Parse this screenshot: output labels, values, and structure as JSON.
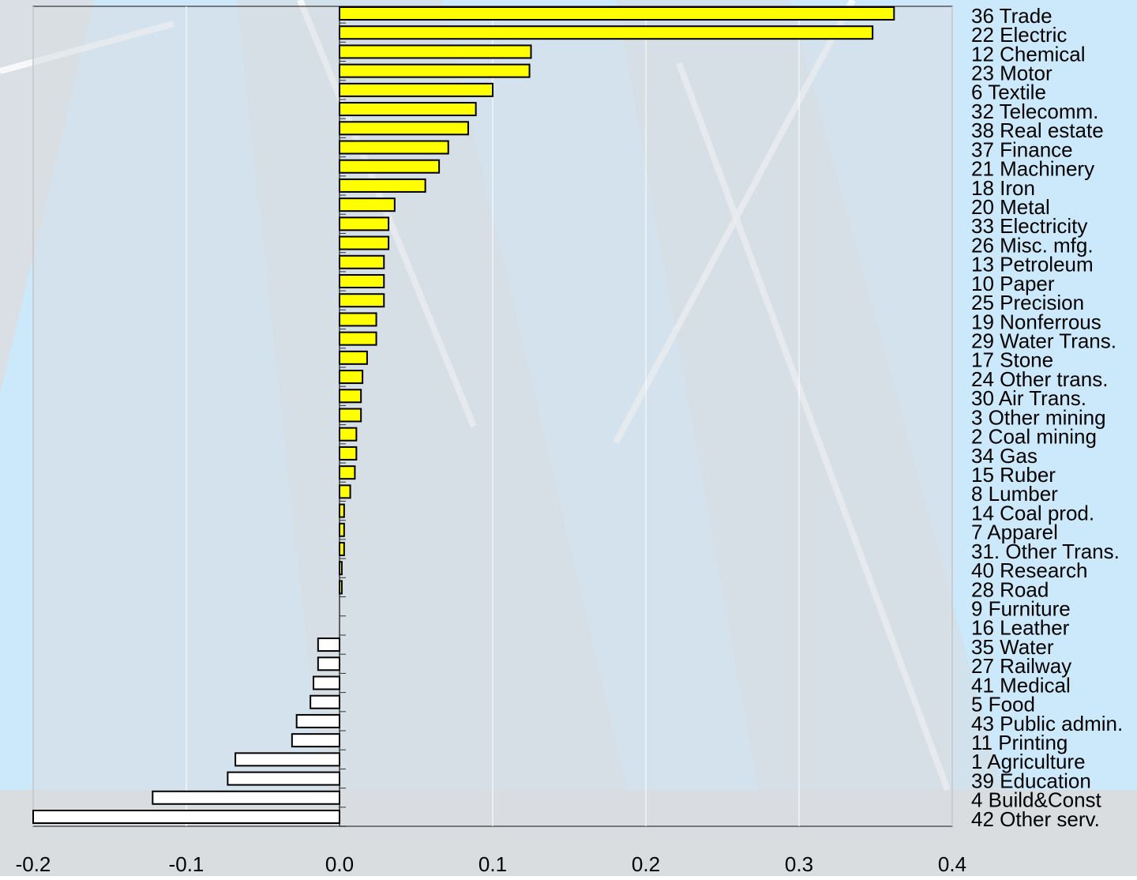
{
  "chart_data": {
    "type": "hbar",
    "categories": [
      "36 Trade",
      "22 Electric",
      "12 Chemical",
      "23 Motor",
      "6 Textile",
      "32 Telecomm.",
      "38 Real estate",
      "37 Finance",
      "21 Machinery",
      "18 Iron",
      "20 Metal",
      "33 Electricity",
      "26 Misc. mfg.",
      "13 Petroleum",
      "10 Paper",
      "25 Precision",
      "19 Nonferrous",
      "29 Water Trans.",
      "17 Stone",
      "24 Other trans.",
      "30 Air Trans.",
      "3 Other mining",
      "2 Coal mining",
      "34 Gas",
      "15 Ruber",
      "8 Lumber",
      "14 Coal prod.",
      "7 Apparel",
      "31. Other Trans.",
      "40 Research",
      "28 Road",
      "9 Furniture",
      "16 Leather",
      "35 Water",
      "27 Railway",
      "41 Medical",
      "5 Food",
      "43 Public admin.",
      "11 Printing",
      "1 Agriculture",
      "39 Education",
      "4 Build&Const",
      "42 Other serv."
    ],
    "values": [
      0.362,
      0.348,
      0.125,
      0.124,
      0.1,
      0.089,
      0.084,
      0.071,
      0.065,
      0.056,
      0.036,
      0.032,
      0.032,
      0.029,
      0.029,
      0.029,
      0.024,
      0.024,
      0.018,
      0.015,
      0.014,
      0.014,
      0.011,
      0.011,
      0.01,
      0.007,
      0.003,
      0.003,
      0.003,
      0.0015,
      0.0015,
      0,
      0,
      -0.014,
      -0.014,
      -0.017,
      -0.019,
      -0.028,
      -0.031,
      -0.068,
      -0.073,
      -0.122,
      -0.2
    ],
    "color": "#ffff00",
    "negative_color": "#ffffff",
    "xlim": [
      -0.2,
      0.4
    ],
    "xticks": [
      -0.2,
      -0.1,
      {
        "value": 0,
        "label": "0.0"
      },
      0.1,
      0.2,
      0.3,
      0.4
    ],
    "grid": true
  }
}
